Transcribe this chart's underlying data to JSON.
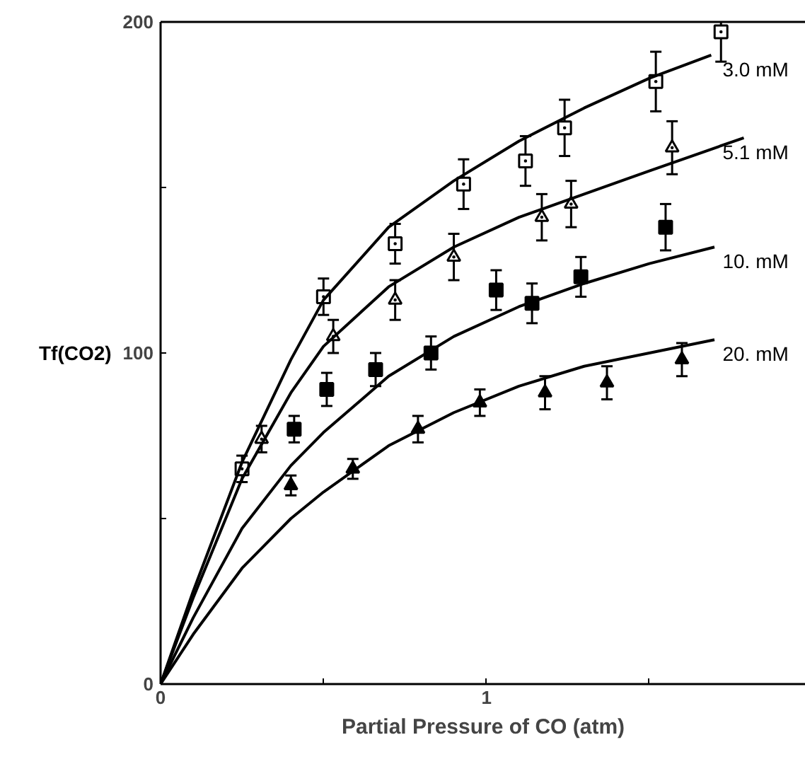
{
  "chart_data": {
    "type": "scatter",
    "xlabel": "Partial Pressure of CO (atm)",
    "ylabel": "Tf(CO2)",
    "xlim": [
      0,
      1.98
    ],
    "ylim": [
      0,
      200
    ],
    "xticks": [
      0,
      {
        "value": 0.5,
        "label": null
      },
      1,
      {
        "value": 1.5,
        "label": null
      }
    ],
    "yticks": [
      0,
      {
        "value": 50,
        "label": null
      },
      100,
      {
        "value": 150,
        "label": null
      },
      200
    ],
    "grid": false,
    "series": [
      {
        "marker": "square_dot",
        "color": "#000000",
        "x": [
          0.25,
          0.5,
          0.72,
          0.93,
          1.12,
          1.24,
          1.52,
          1.72
        ],
        "values": [
          65,
          117,
          133,
          151,
          158,
          168,
          182,
          197
        ],
        "errors": [
          4,
          5.5,
          6,
          7.5,
          7.5,
          8.5,
          9,
          9
        ]
      },
      {
        "marker": "triangle_dot",
        "color": "#000000",
        "x": [
          0.31,
          0.53,
          0.72,
          0.9,
          1.17,
          1.26,
          1.57
        ],
        "values": [
          74,
          105,
          116,
          129,
          141,
          145,
          162
        ],
        "errors": [
          4,
          5,
          6,
          7,
          7,
          7,
          8
        ]
      },
      {
        "marker": "square",
        "color": "#000000",
        "x": [
          0.41,
          0.51,
          0.66,
          0.83,
          1.03,
          1.14,
          1.29,
          1.55
        ],
        "values": [
          77,
          89,
          95,
          100,
          119,
          115,
          123,
          138
        ],
        "errors": [
          4,
          5,
          5,
          5,
          6,
          6,
          6,
          7
        ]
      },
      {
        "marker": "triangle",
        "color": "#000000",
        "x": [
          0.4,
          0.59,
          0.79,
          0.98,
          1.18,
          1.37,
          1.6
        ],
        "values": [
          60,
          65,
          77,
          85,
          88,
          91,
          98
        ],
        "errors": [
          3,
          3,
          4,
          4,
          5,
          5,
          5
        ]
      },
      {
        "type": "line",
        "color": "#000000",
        "x": [
          0,
          0.1,
          0.25,
          0.4,
          0.5,
          0.7,
          0.9,
          1.1,
          1.3,
          1.5,
          1.69
        ],
        "values": [
          0,
          28,
          67,
          98,
          116,
          138,
          152,
          164,
          174,
          183,
          190
        ]
      },
      {
        "type": "line",
        "color": "#000000",
        "x": [
          0,
          0.1,
          0.25,
          0.4,
          0.5,
          0.7,
          0.9,
          1.1,
          1.3,
          1.5,
          1.79
        ],
        "values": [
          0,
          26,
          62,
          88,
          102,
          120,
          132,
          141,
          148,
          155,
          165
        ]
      },
      {
        "type": "line",
        "color": "#000000",
        "x": [
          0,
          0.1,
          0.25,
          0.4,
          0.5,
          0.7,
          0.9,
          1.1,
          1.3,
          1.5,
          1.7
        ],
        "values": [
          0,
          20,
          47,
          66,
          76,
          93,
          105,
          114,
          121,
          127,
          132
        ]
      },
      {
        "type": "line",
        "color": "#000000",
        "x": [
          0,
          0.1,
          0.25,
          0.4,
          0.5,
          0.7,
          0.9,
          1.1,
          1.3,
          1.5,
          1.7
        ],
        "values": [
          0,
          15,
          35,
          50,
          58,
          72,
          82,
          90,
          96,
          100,
          104
        ]
      }
    ],
    "annotations": [
      "3.0 mM",
      "5.1 mM",
      "10. mM",
      "20. mM"
    ]
  }
}
